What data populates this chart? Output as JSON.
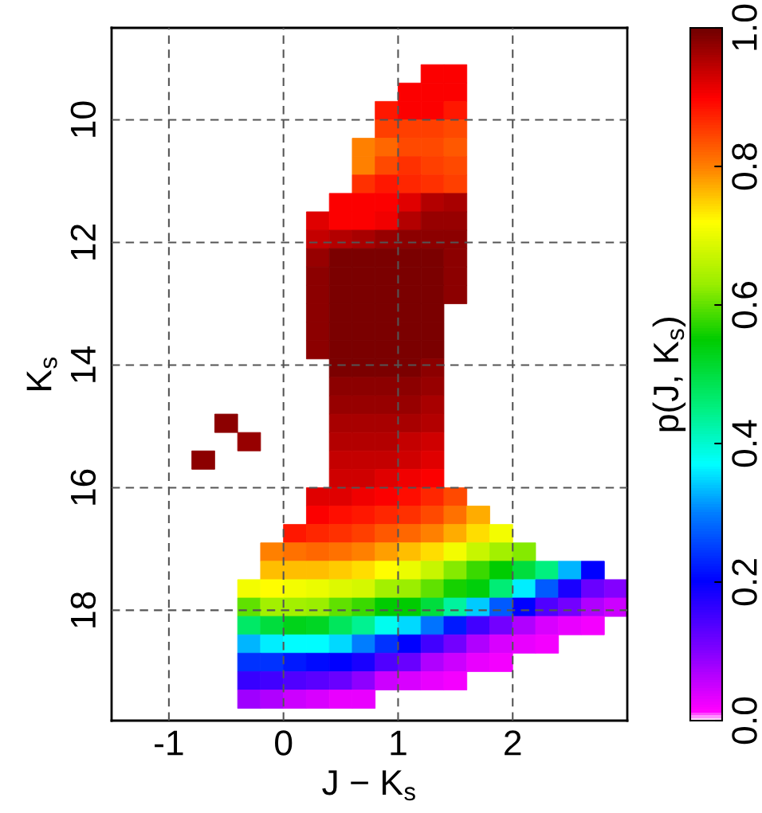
{
  "chart_data": {
    "type": "scatter",
    "xlabel": "J − K$_{s}$",
    "ylabel": "K$_{s}$",
    "clabel": "p(J, K$_{s}$)",
    "marker": "square",
    "grid": true,
    "xlim": [
      -1.5,
      3.0
    ],
    "ylim": [
      19.8,
      8.5
    ],
    "xticks": [
      -1,
      0,
      1,
      2
    ],
    "yticks": [
      10,
      12,
      14,
      16,
      18
    ],
    "clim": [
      0,
      1
    ],
    "cticks": [
      {
        "value": 0,
        "label": "0.0"
      },
      0.2,
      0.4,
      0.6,
      0.8,
      {
        "value": 1,
        "label": "1.0"
      }
    ],
    "x": [
      1.3,
      1.5,
      1.1,
      1.3,
      1.5,
      0.9,
      1.1,
      1.3,
      1.5,
      0.9,
      1.1,
      1.3,
      1.5,
      0.7,
      0.9,
      1.1,
      1.3,
      1.5,
      0.7,
      0.9,
      1.1,
      1.3,
      1.5,
      0.7,
      0.9,
      1.1,
      1.3,
      1.5,
      0.5,
      0.7,
      0.9,
      1.1,
      1.3,
      1.5,
      0.3,
      0.5,
      0.7,
      0.9,
      1.1,
      1.3,
      1.5,
      0.3,
      0.5,
      0.7,
      0.9,
      1.1,
      1.3,
      1.5,
      0.3,
      0.5,
      0.7,
      0.9,
      1.1,
      1.3,
      1.5,
      0.3,
      0.5,
      0.7,
      0.9,
      1.1,
      1.3,
      1.5,
      0.3,
      0.5,
      0.7,
      0.9,
      1.1,
      1.3,
      1.5,
      0.3,
      0.5,
      0.7,
      0.9,
      1.1,
      1.3,
      0.3,
      0.5,
      0.7,
      0.9,
      1.1,
      1.3,
      0.3,
      0.5,
      0.7,
      0.9,
      1.1,
      1.3,
      0.5,
      0.7,
      0.9,
      1.1,
      1.3,
      0.5,
      0.7,
      0.9,
      1.1,
      1.3,
      0.5,
      0.7,
      0.9,
      1.1,
      1.3,
      -0.5,
      0.5,
      0.7,
      0.9,
      1.1,
      1.3,
      -0.3,
      0.5,
      0.7,
      0.9,
      1.1,
      1.3,
      -0.7,
      0.5,
      0.7,
      0.9,
      1.1,
      1.3,
      0.5,
      0.7,
      0.9,
      1.1,
      1.3,
      0.3,
      0.5,
      0.7,
      0.9,
      1.1,
      1.3,
      1.5,
      0.3,
      0.5,
      0.7,
      0.9,
      1.1,
      1.3,
      1.5,
      1.7,
      0.1,
      0.3,
      0.5,
      0.7,
      0.9,
      1.1,
      1.3,
      1.5,
      1.7,
      1.9,
      -0.1,
      0.1,
      0.3,
      0.5,
      0.7,
      0.9,
      1.1,
      1.3,
      1.5,
      1.7,
      1.9,
      2.1,
      -0.1,
      0.1,
      0.3,
      0.5,
      0.7,
      0.9,
      1.1,
      1.3,
      1.5,
      1.7,
      1.9,
      2.1,
      2.3,
      2.5,
      2.7,
      -0.3,
      -0.1,
      0.1,
      0.3,
      0.5,
      0.7,
      0.9,
      1.1,
      1.3,
      1.5,
      1.7,
      1.9,
      2.1,
      2.3,
      2.5,
      2.7,
      2.9,
      -0.3,
      -0.1,
      0.1,
      0.3,
      0.5,
      0.7,
      0.9,
      1.1,
      1.3,
      1.5,
      1.7,
      1.9,
      2.1,
      2.3,
      2.5,
      2.7,
      2.9,
      -0.3,
      -0.1,
      0.1,
      0.3,
      0.5,
      0.7,
      0.9,
      1.1,
      1.3,
      1.5,
      1.7,
      1.9,
      2.1,
      2.3,
      2.5,
      2.7,
      -0.3,
      -0.1,
      0.1,
      0.3,
      0.5,
      0.7,
      0.9,
      1.1,
      1.3,
      1.5,
      1.7,
      1.9,
      2.1,
      2.3,
      -0.3,
      -0.1,
      0.1,
      0.3,
      0.5,
      0.7,
      0.9,
      1.1,
      1.3,
      1.5,
      1.7,
      1.9,
      -0.3,
      -0.1,
      0.1,
      0.3,
      0.5,
      0.7,
      0.9,
      1.1,
      1.3,
      1.5,
      -0.3,
      -0.1,
      0.1,
      0.3,
      0.5,
      0.7
    ],
    "values": [
      9.25,
      9.25,
      9.55,
      9.55,
      9.55,
      9.85,
      9.85,
      9.85,
      9.85,
      10.15,
      10.15,
      10.15,
      10.15,
      10.45,
      10.45,
      10.45,
      10.45,
      10.45,
      10.75,
      10.75,
      10.75,
      10.75,
      10.75,
      11.05,
      11.05,
      11.05,
      11.05,
      11.05,
      11.35,
      11.35,
      11.35,
      11.35,
      11.35,
      11.35,
      11.65,
      11.65,
      11.65,
      11.65,
      11.65,
      11.65,
      11.65,
      11.95,
      11.95,
      11.95,
      11.95,
      11.95,
      11.95,
      11.95,
      12.25,
      12.25,
      12.25,
      12.25,
      12.25,
      12.25,
      12.25,
      12.55,
      12.55,
      12.55,
      12.55,
      12.55,
      12.55,
      12.55,
      12.85,
      12.85,
      12.85,
      12.85,
      12.85,
      12.85,
      12.85,
      13.15,
      13.15,
      13.15,
      13.15,
      13.15,
      13.15,
      13.45,
      13.45,
      13.45,
      13.45,
      13.45,
      13.45,
      13.75,
      13.75,
      13.75,
      13.75,
      13.75,
      13.75,
      14.05,
      14.05,
      14.05,
      14.05,
      14.05,
      14.35,
      14.35,
      14.35,
      14.35,
      14.35,
      14.65,
      14.65,
      14.65,
      14.65,
      14.65,
      14.95,
      14.95,
      14.95,
      14.95,
      14.95,
      14.95,
      15.25,
      15.25,
      15.25,
      15.25,
      15.25,
      15.25,
      15.55,
      15.55,
      15.55,
      15.55,
      15.55,
      15.55,
      15.85,
      15.85,
      15.85,
      15.85,
      15.85,
      16.15,
      16.15,
      16.15,
      16.15,
      16.15,
      16.15,
      16.15,
      16.45,
      16.45,
      16.45,
      16.45,
      16.45,
      16.45,
      16.45,
      16.45,
      16.75,
      16.75,
      16.75,
      16.75,
      16.75,
      16.75,
      16.75,
      16.75,
      16.75,
      16.75,
      17.05,
      17.05,
      17.05,
      17.05,
      17.05,
      17.05,
      17.05,
      17.05,
      17.05,
      17.05,
      17.05,
      17.05,
      17.35,
      17.35,
      17.35,
      17.35,
      17.35,
      17.35,
      17.35,
      17.35,
      17.35,
      17.35,
      17.35,
      17.35,
      17.35,
      17.35,
      17.35,
      17.65,
      17.65,
      17.65,
      17.65,
      17.65,
      17.65,
      17.65,
      17.65,
      17.65,
      17.65,
      17.65,
      17.65,
      17.65,
      17.65,
      17.65,
      17.65,
      17.65,
      17.95,
      17.95,
      17.95,
      17.95,
      17.95,
      17.95,
      17.95,
      17.95,
      17.95,
      17.95,
      17.95,
      17.95,
      17.95,
      17.95,
      17.95,
      17.95,
      17.95,
      18.25,
      18.25,
      18.25,
      18.25,
      18.25,
      18.25,
      18.25,
      18.25,
      18.25,
      18.25,
      18.25,
      18.25,
      18.25,
      18.25,
      18.25,
      18.25,
      18.55,
      18.55,
      18.55,
      18.55,
      18.55,
      18.55,
      18.55,
      18.55,
      18.55,
      18.55,
      18.55,
      18.55,
      18.55,
      18.55,
      18.85,
      18.85,
      18.85,
      18.85,
      18.85,
      18.85,
      18.85,
      18.85,
      18.85,
      18.85,
      18.85,
      18.85,
      19.15,
      19.15,
      19.15,
      19.15,
      19.15,
      19.15,
      19.15,
      19.15,
      19.15,
      19.15,
      19.45,
      19.45,
      19.45,
      19.45,
      19.45,
      19.45
    ],
    "cvalues": [
      0.9,
      0.9,
      0.9,
      0.9,
      0.9,
      0.88,
      0.9,
      0.9,
      0.88,
      0.85,
      0.85,
      0.85,
      0.84,
      0.8,
      0.82,
      0.84,
      0.84,
      0.83,
      0.8,
      0.84,
      0.86,
      0.85,
      0.84,
      0.86,
      0.88,
      0.87,
      0.86,
      0.85,
      0.9,
      0.9,
      0.9,
      0.92,
      0.95,
      0.96,
      0.92,
      0.9,
      0.9,
      0.91,
      0.95,
      0.97,
      0.97,
      0.94,
      0.95,
      0.96,
      0.97,
      0.98,
      0.98,
      0.98,
      0.97,
      0.99,
      0.99,
      0.99,
      0.99,
      0.99,
      0.98,
      0.98,
      0.99,
      0.99,
      0.99,
      0.99,
      0.99,
      0.98,
      0.98,
      0.99,
      0.99,
      0.99,
      0.99,
      0.99,
      0.98,
      0.98,
      0.99,
      0.99,
      0.99,
      0.99,
      0.99,
      0.98,
      0.99,
      0.99,
      0.99,
      0.99,
      0.99,
      0.98,
      0.99,
      0.99,
      0.99,
      0.99,
      0.99,
      0.99,
      0.99,
      0.99,
      0.99,
      0.98,
      0.98,
      0.98,
      0.98,
      0.98,
      0.97,
      0.97,
      0.97,
      0.97,
      0.97,
      0.96,
      0.98,
      0.96,
      0.96,
      0.96,
      0.96,
      0.95,
      0.97,
      0.95,
      0.95,
      0.95,
      0.94,
      0.93,
      0.98,
      0.94,
      0.94,
      0.94,
      0.93,
      0.92,
      0.93,
      0.93,
      0.92,
      0.91,
      0.9,
      0.92,
      0.92,
      0.91,
      0.9,
      0.89,
      0.87,
      0.84,
      0.9,
      0.89,
      0.88,
      0.87,
      0.86,
      0.84,
      0.81,
      0.77,
      0.88,
      0.87,
      0.86,
      0.85,
      0.83,
      0.82,
      0.8,
      0.77,
      0.74,
      0.71,
      0.8,
      0.81,
      0.82,
      0.81,
      0.8,
      0.78,
      0.76,
      0.74,
      0.71,
      0.67,
      0.64,
      0.62,
      0.76,
      0.76,
      0.76,
      0.75,
      0.74,
      0.72,
      0.7,
      0.67,
      0.62,
      0.58,
      0.55,
      0.5,
      0.45,
      0.33,
      0.2,
      0.71,
      0.72,
      0.71,
      0.7,
      0.69,
      0.68,
      0.64,
      0.63,
      0.6,
      0.56,
      0.54,
      0.46,
      0.36,
      0.27,
      0.18,
      0.12,
      0.1,
      0.6,
      0.64,
      0.64,
      0.63,
      0.6,
      0.58,
      0.55,
      0.55,
      0.5,
      0.43,
      0.34,
      0.27,
      0.2,
      0.14,
      0.11,
      0.07,
      0.05,
      0.47,
      0.5,
      0.53,
      0.52,
      0.48,
      0.44,
      0.38,
      0.35,
      0.29,
      0.22,
      0.15,
      0.11,
      0.07,
      0.04,
      0.03,
      0.02,
      0.33,
      0.36,
      0.37,
      0.37,
      0.35,
      0.3,
      0.24,
      0.2,
      0.15,
      0.11,
      0.07,
      0.04,
      0.03,
      0.02,
      0.24,
      0.24,
      0.22,
      0.21,
      0.2,
      0.18,
      0.14,
      0.12,
      0.07,
      0.05,
      0.03,
      0.02,
      0.16,
      0.15,
      0.14,
      0.13,
      0.12,
      0.09,
      0.05,
      0.04,
      0.03,
      0.02,
      0.08,
      0.07,
      0.05,
      0.04,
      0.03,
      0.03
    ]
  }
}
